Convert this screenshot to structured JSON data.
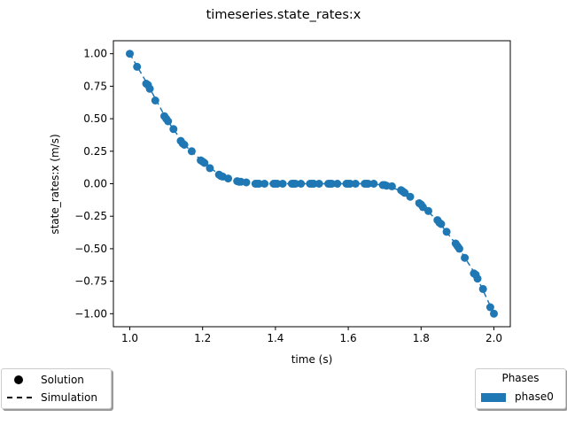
{
  "chart_data": {
    "type": "scatter",
    "title": "timeseries.state_rates:x",
    "xlabel": "time (s)",
    "ylabel": "state_rates:x (m/s)",
    "xlim": [
      0.955,
      2.045
    ],
    "ylim": [
      -1.1,
      1.1
    ],
    "xticks": [
      1.0,
      1.2,
      1.4,
      1.6,
      1.8,
      2.0
    ],
    "xtick_labels": [
      "1.0",
      "1.2",
      "1.4",
      "1.6",
      "1.8",
      "2.0"
    ],
    "yticks": [
      1.0,
      0.75,
      0.5,
      0.25,
      0.0,
      -0.25,
      -0.5,
      -0.75,
      -1.0
    ],
    "ytick_labels": [
      "1.00",
      "0.75",
      "0.50",
      "0.25",
      "0.00",
      "−0.25",
      "−0.50",
      "−0.75",
      "−1.00"
    ],
    "grid": false,
    "series": [
      {
        "name": "Solution",
        "style": "markers",
        "color": "#1f77b4",
        "x": [
          1.0,
          1.02,
          1.045,
          1.05,
          1.055,
          1.07,
          1.095,
          1.1,
          1.105,
          1.12,
          1.14,
          1.145,
          1.15,
          1.17,
          1.195,
          1.2,
          1.205,
          1.22,
          1.245,
          1.25,
          1.255,
          1.27,
          1.295,
          1.3,
          1.305,
          1.32,
          1.345,
          1.35,
          1.355,
          1.37,
          1.395,
          1.4,
          1.405,
          1.42,
          1.445,
          1.45,
          1.455,
          1.47,
          1.495,
          1.5,
          1.505,
          1.52,
          1.545,
          1.55,
          1.555,
          1.57,
          1.595,
          1.6,
          1.605,
          1.62,
          1.645,
          1.65,
          1.655,
          1.67,
          1.695,
          1.7,
          1.705,
          1.72,
          1.745,
          1.75,
          1.755,
          1.77,
          1.795,
          1.8,
          1.805,
          1.82,
          1.845,
          1.85,
          1.855,
          1.87,
          1.895,
          1.9,
          1.905,
          1.92,
          1.945,
          1.95,
          1.955,
          1.97,
          1.99,
          2.0
        ],
        "y": [
          1.0,
          0.9,
          0.77,
          0.76,
          0.73,
          0.64,
          0.52,
          0.5,
          0.48,
          0.42,
          0.33,
          0.31,
          0.3,
          0.25,
          0.18,
          0.17,
          0.16,
          0.12,
          0.07,
          0.06,
          0.055,
          0.04,
          0.02,
          0.015,
          0.015,
          0.01,
          0.0,
          0.0,
          0.0,
          0.0,
          0.0,
          0.0,
          0.0,
          0.0,
          0.0,
          0.0,
          0.0,
          0.0,
          0.0,
          0.0,
          0.0,
          0.0,
          0.0,
          0.0,
          0.0,
          0.0,
          0.0,
          0.0,
          0.0,
          0.0,
          0.0,
          0.0,
          0.0,
          0.0,
          -0.01,
          -0.01,
          -0.015,
          -0.02,
          -0.05,
          -0.06,
          -0.07,
          -0.1,
          -0.15,
          -0.16,
          -0.18,
          -0.21,
          -0.28,
          -0.3,
          -0.31,
          -0.37,
          -0.46,
          -0.48,
          -0.5,
          -0.57,
          -0.69,
          -0.7,
          -0.73,
          -0.81,
          -0.95,
          -1.0
        ]
      },
      {
        "name": "Simulation",
        "style": "dashed-line",
        "color": "#1f77b4",
        "x": [
          1.0,
          1.05,
          1.1,
          1.15,
          1.2,
          1.25,
          1.3,
          1.35,
          1.4,
          1.45,
          1.5,
          1.55,
          1.6,
          1.65,
          1.7,
          1.75,
          1.8,
          1.85,
          1.9,
          1.95,
          2.0
        ],
        "y": [
          1.0,
          0.76,
          0.5,
          0.3,
          0.17,
          0.06,
          0.015,
          0.0,
          0.0,
          0.0,
          0.0,
          0.0,
          0.0,
          0.0,
          -0.01,
          -0.06,
          -0.16,
          -0.3,
          -0.48,
          -0.7,
          -1.0
        ]
      }
    ],
    "legend": {
      "placement": "bottom-left",
      "entries": [
        {
          "label": "Solution",
          "marker": "circle"
        },
        {
          "label": "Simulation",
          "marker": "dashed-line"
        }
      ]
    },
    "phase_legend": {
      "placement": "bottom-right",
      "title": "Phases",
      "entries": [
        {
          "label": "phase0",
          "color": "#1f77b4"
        }
      ]
    }
  }
}
